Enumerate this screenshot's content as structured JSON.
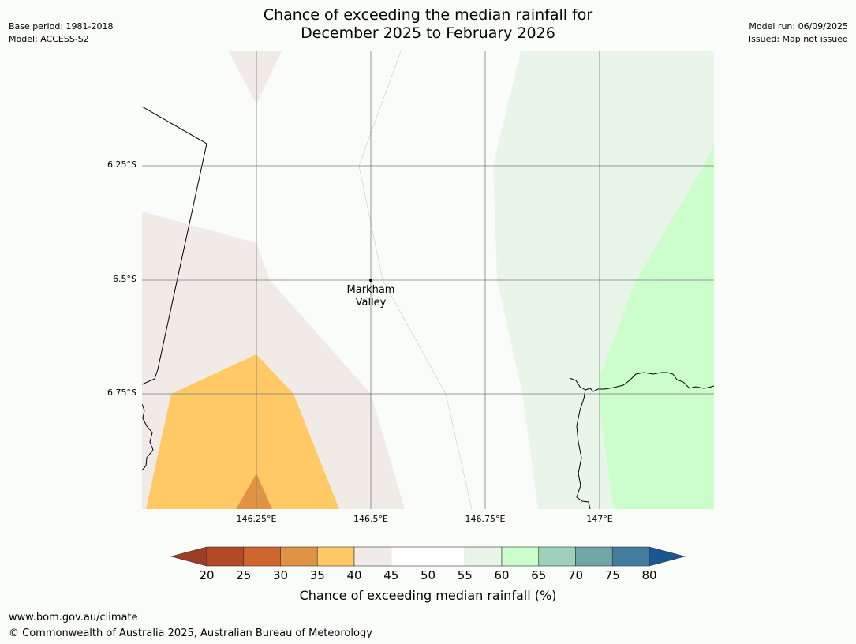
{
  "title": {
    "line1": "Chance of exceeding the median rainfall for",
    "line2": "December 2025 to February 2026"
  },
  "meta_left": {
    "base_period": "Base period: 1981-2018",
    "model": "Model: ACCESS-S2"
  },
  "meta_right": {
    "model_run": "Model run: 06/09/2025",
    "issued": "Issued: Map not issued"
  },
  "map": {
    "lat_labels": [
      "6.25°S",
      "6.5°S",
      "6.75°S"
    ],
    "lon_labels": [
      "146.25°E",
      "146.5°E",
      "146.75°E",
      "147°E"
    ],
    "place": {
      "line1": "Markham",
      "line2": "Valley"
    }
  },
  "colorbar": {
    "ticks": [
      "20",
      "25",
      "30",
      "35",
      "40",
      "45",
      "50",
      "55",
      "60",
      "65",
      "70",
      "75",
      "80"
    ],
    "colors": [
      "#b24a25",
      "#cf652f",
      "#e09345",
      "#ffca66",
      "#f0ebe6",
      "#ffffff",
      "#ffffff",
      "#eaf5ea",
      "#ccfecc",
      "#9ed0ba",
      "#72a6a6",
      "#437d9e"
    ],
    "under_color": "#9e3c25",
    "over_color": "#1b5592",
    "label": "Chance of exceeding median rainfall (%)"
  },
  "footer": {
    "url": "www.bom.gov.au/climate",
    "copyright": "© Commonwealth of Australia 2025, Australian Bureau of Meteorology"
  }
}
